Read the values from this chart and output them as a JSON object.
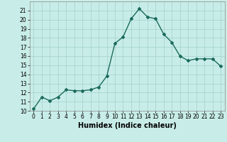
{
  "x": [
    0,
    1,
    2,
    3,
    4,
    5,
    6,
    7,
    8,
    9,
    10,
    11,
    12,
    13,
    14,
    15,
    16,
    17,
    18,
    19,
    20,
    21,
    22,
    23
  ],
  "y": [
    10.2,
    11.5,
    11.1,
    11.5,
    12.3,
    12.2,
    12.2,
    12.3,
    12.6,
    13.8,
    17.4,
    18.1,
    20.1,
    21.2,
    20.3,
    20.1,
    18.4,
    17.5,
    16.0,
    15.5,
    15.7,
    15.7,
    15.7,
    14.9
  ],
  "line_color": "#1a6b5a",
  "marker": "D",
  "marker_size": 2,
  "bg_color": "#c8ede8",
  "grid_color": "#aad4ce",
  "xlabel": "Humidex (Indice chaleur)",
  "ylim": [
    10,
    22
  ],
  "xlim": [
    -0.5,
    23.5
  ],
  "yticks": [
    10,
    11,
    12,
    13,
    14,
    15,
    16,
    17,
    18,
    19,
    20,
    21
  ],
  "xticks": [
    0,
    1,
    2,
    3,
    4,
    5,
    6,
    7,
    8,
    9,
    10,
    11,
    12,
    13,
    14,
    15,
    16,
    17,
    18,
    19,
    20,
    21,
    22,
    23
  ],
  "tick_fontsize": 5.5,
  "xlabel_fontsize": 7,
  "linewidth": 1.0
}
